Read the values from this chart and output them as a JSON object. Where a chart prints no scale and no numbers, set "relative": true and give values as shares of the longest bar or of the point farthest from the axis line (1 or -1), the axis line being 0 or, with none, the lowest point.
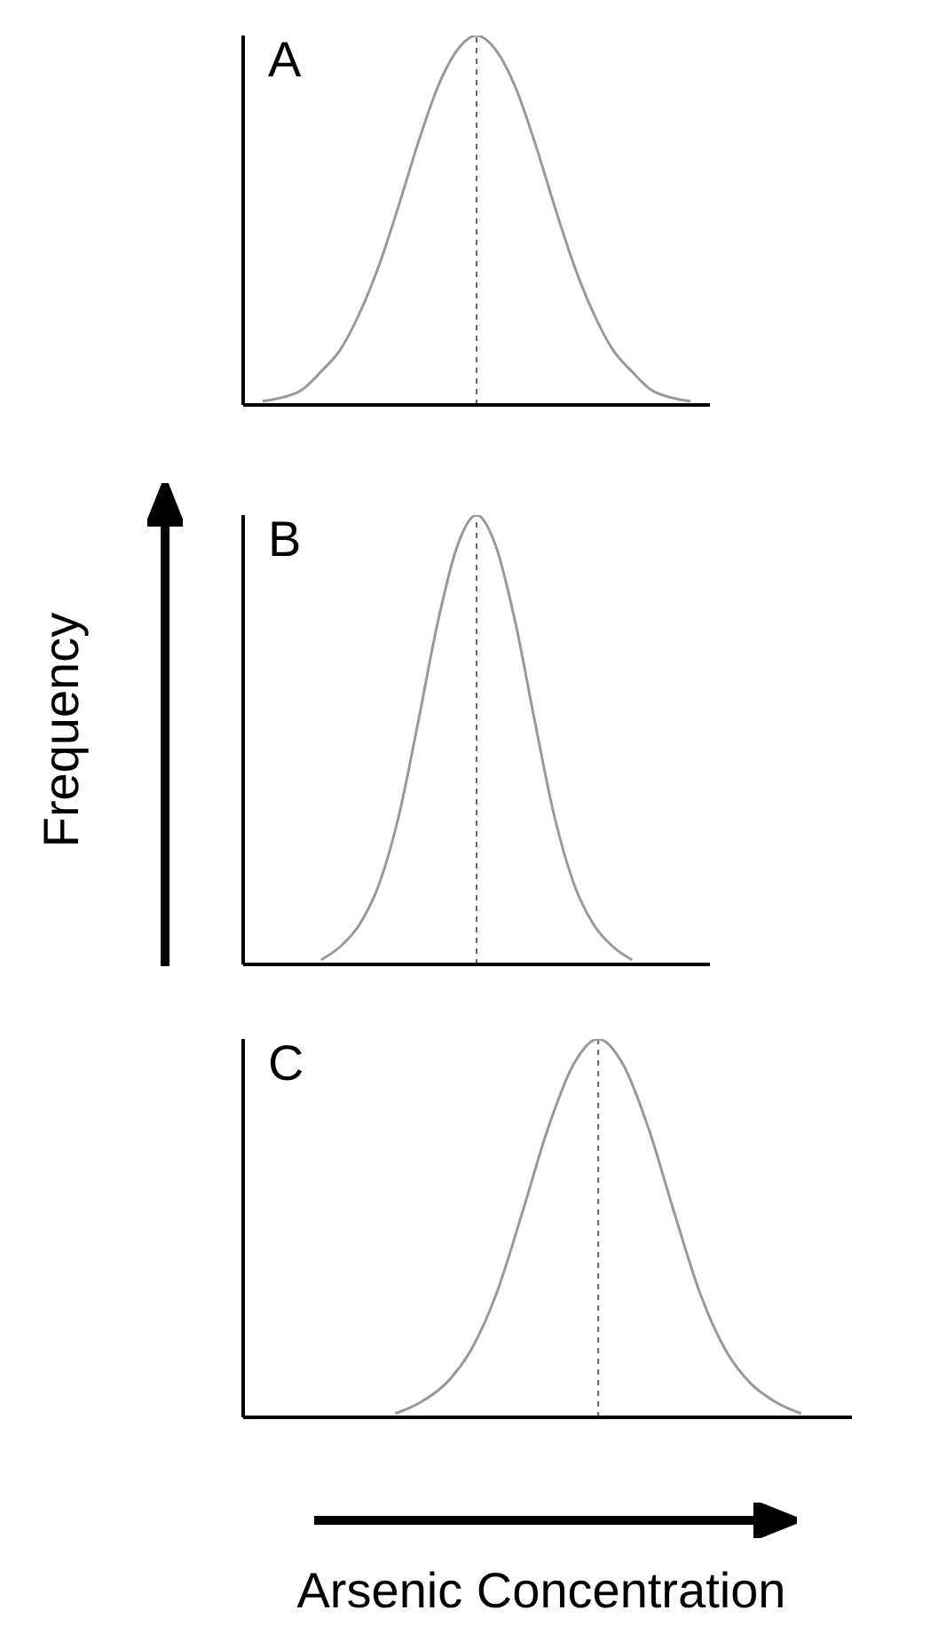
{
  "chart_data": [
    {
      "type": "line",
      "title": "A",
      "relative": true,
      "categories": [
        null,
        null,
        null,
        null,
        null,
        null,
        null,
        null,
        null,
        null,
        null,
        null,
        null,
        null,
        null,
        null,
        null,
        null,
        null,
        null,
        null,
        null,
        null,
        null,
        null
      ],
      "values": [
        null,
        0.01,
        0.02,
        0.04,
        0.09,
        0.15,
        0.25,
        0.38,
        0.54,
        0.71,
        0.86,
        0.96,
        1,
        0.96,
        0.86,
        0.71,
        0.54,
        0.38,
        0.25,
        0.15,
        0.09,
        0.04,
        0.02,
        0.01,
        null
      ],
      "color": "#999999",
      "marker": "none",
      "grid": false,
      "legend": false
    },
    {
      "type": "line",
      "title": "B",
      "ylabel": "Frequency",
      "relative": true,
      "categories": [
        null,
        null,
        null,
        null,
        null,
        null,
        null,
        null,
        null,
        null,
        null,
        null,
        null,
        null,
        null,
        null,
        null,
        null,
        null,
        null,
        null,
        null,
        null,
        null,
        null
      ],
      "values": [
        null,
        null,
        null,
        null,
        0.01,
        0.04,
        0.09,
        0.18,
        0.33,
        0.54,
        0.76,
        0.93,
        1,
        0.93,
        0.76,
        0.54,
        0.33,
        0.18,
        0.09,
        0.04,
        0.01,
        null,
        null,
        null,
        null
      ],
      "color": "#999999",
      "marker": "none",
      "grid": false,
      "legend": false
    },
    {
      "type": "line",
      "title": "C",
      "xlabel": "Arsenic Concentration",
      "relative": true,
      "categories": [
        null,
        null,
        null,
        null,
        null,
        null,
        null,
        null,
        null,
        null,
        null,
        null,
        null,
        null,
        null,
        null,
        null,
        null,
        null,
        null,
        null,
        null,
        null,
        null,
        null
      ],
      "values": [
        null,
        null,
        null,
        null,
        null,
        null,
        0.01,
        0.04,
        0.09,
        0.18,
        0.33,
        0.54,
        0.76,
        0.93,
        1,
        0.93,
        0.76,
        0.54,
        0.33,
        0.18,
        0.09,
        0.04,
        0.01,
        null,
        null
      ],
      "color": "#999999",
      "marker": "none",
      "grid": false,
      "legend": false
    }
  ]
}
